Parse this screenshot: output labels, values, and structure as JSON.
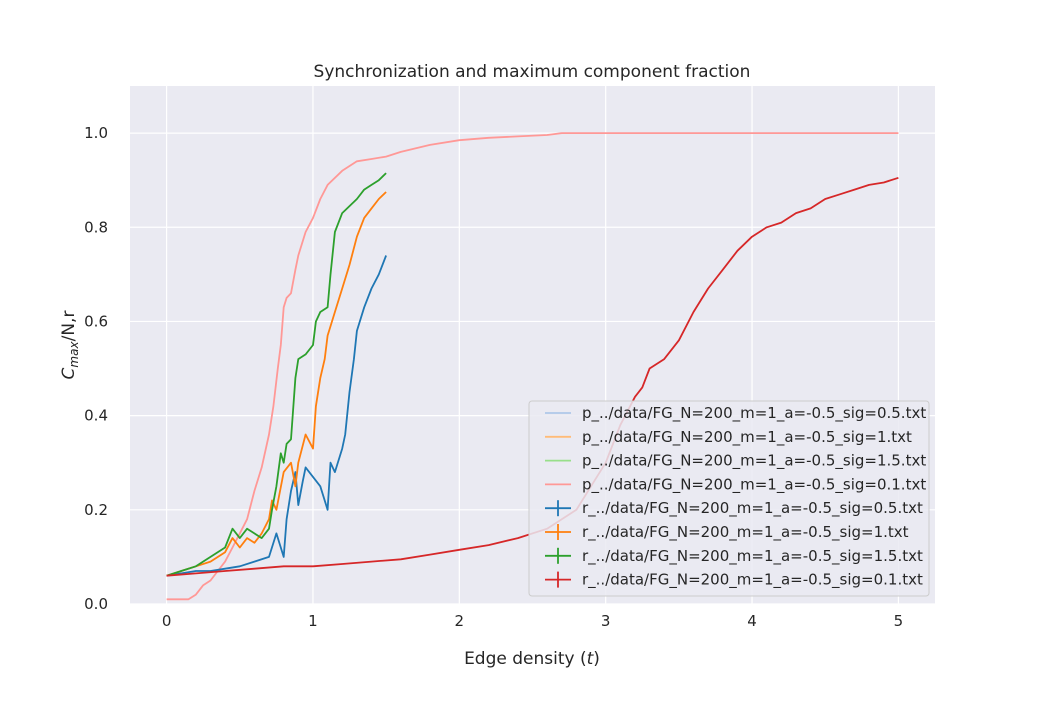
{
  "chart_data": {
    "type": "line",
    "title": "Synchronization and maximum component fraction",
    "xlabel_main": "Edge density (",
    "xlabel_var": "t",
    "xlabel_close": ")",
    "ylabel_var": "C",
    "ylabel_sub": "max",
    "ylabel_rest": "/N,r",
    "xlim": [
      -0.25,
      5.25
    ],
    "ylim": [
      0.0,
      1.1
    ],
    "xticks": [
      0,
      1,
      2,
      3,
      4,
      5
    ],
    "xtick_labels": [
      "0",
      "1",
      "2",
      "3",
      "4",
      "5"
    ],
    "yticks": [
      0.0,
      0.2,
      0.4,
      0.6,
      0.8,
      1.0
    ],
    "ytick_labels": [
      "0.0",
      "0.2",
      "0.4",
      "0.6",
      "0.8",
      "1.0"
    ],
    "grid": true,
    "legend_position": "lower-right",
    "series": [
      {
        "name": "p_../data/FG_N=200_m=1_a=-0.5_sig=0.5.txt",
        "color": "#aec7e8",
        "marker": false,
        "points": []
      },
      {
        "name": "p_../data/FG_N=200_m=1_a=-0.5_sig=1.txt",
        "color": "#ffbb78",
        "marker": false,
        "points": []
      },
      {
        "name": "p_../data/FG_N=200_m=1_a=-0.5_sig=1.5.txt",
        "color": "#98df8a",
        "marker": false,
        "points": []
      },
      {
        "name": "p_../data/FG_N=200_m=1_a=-0.5_sig=0.1.txt",
        "color": "#ff9896",
        "marker": false,
        "points": [
          [
            0.0,
            0.01
          ],
          [
            0.1,
            0.01
          ],
          [
            0.15,
            0.01
          ],
          [
            0.2,
            0.02
          ],
          [
            0.25,
            0.04
          ],
          [
            0.3,
            0.05
          ],
          [
            0.35,
            0.07
          ],
          [
            0.4,
            0.09
          ],
          [
            0.45,
            0.12
          ],
          [
            0.5,
            0.15
          ],
          [
            0.55,
            0.18
          ],
          [
            0.6,
            0.24
          ],
          [
            0.65,
            0.29
          ],
          [
            0.7,
            0.36
          ],
          [
            0.73,
            0.42
          ],
          [
            0.76,
            0.5
          ],
          [
            0.78,
            0.55
          ],
          [
            0.8,
            0.63
          ],
          [
            0.82,
            0.65
          ],
          [
            0.85,
            0.66
          ],
          [
            0.88,
            0.71
          ],
          [
            0.9,
            0.74
          ],
          [
            0.95,
            0.79
          ],
          [
            1.0,
            0.82
          ],
          [
            1.05,
            0.86
          ],
          [
            1.1,
            0.89
          ],
          [
            1.2,
            0.92
          ],
          [
            1.3,
            0.94
          ],
          [
            1.4,
            0.945
          ],
          [
            1.5,
            0.95
          ],
          [
            1.6,
            0.96
          ],
          [
            1.8,
            0.975
          ],
          [
            2.0,
            0.985
          ],
          [
            2.2,
            0.99
          ],
          [
            2.4,
            0.993
          ],
          [
            2.6,
            0.996
          ],
          [
            2.7,
            1.0
          ],
          [
            3.0,
            1.0
          ],
          [
            4.0,
            1.0
          ],
          [
            5.0,
            1.0
          ]
        ]
      },
      {
        "name": "r_../data/FG_N=200_m=1_a=-0.5_sig=0.5.txt",
        "color": "#1f77b4",
        "marker": true,
        "points": [
          [
            0.0,
            0.06
          ],
          [
            0.1,
            0.065
          ],
          [
            0.2,
            0.07
          ],
          [
            0.3,
            0.07
          ],
          [
            0.4,
            0.075
          ],
          [
            0.5,
            0.08
          ],
          [
            0.6,
            0.09
          ],
          [
            0.7,
            0.1
          ],
          [
            0.75,
            0.15
          ],
          [
            0.8,
            0.1
          ],
          [
            0.82,
            0.18
          ],
          [
            0.85,
            0.24
          ],
          [
            0.88,
            0.28
          ],
          [
            0.9,
            0.21
          ],
          [
            0.93,
            0.26
          ],
          [
            0.95,
            0.29
          ],
          [
            1.0,
            0.27
          ],
          [
            1.05,
            0.25
          ],
          [
            1.1,
            0.2
          ],
          [
            1.12,
            0.3
          ],
          [
            1.15,
            0.28
          ],
          [
            1.2,
            0.33
          ],
          [
            1.22,
            0.36
          ],
          [
            1.25,
            0.45
          ],
          [
            1.28,
            0.52
          ],
          [
            1.3,
            0.58
          ],
          [
            1.35,
            0.63
          ],
          [
            1.4,
            0.67
          ],
          [
            1.45,
            0.7
          ],
          [
            1.5,
            0.74
          ]
        ]
      },
      {
        "name": "r_../data/FG_N=200_m=1_a=-0.5_sig=1.txt",
        "color": "#ff7f0e",
        "marker": true,
        "points": [
          [
            0.0,
            0.06
          ],
          [
            0.1,
            0.07
          ],
          [
            0.2,
            0.08
          ],
          [
            0.3,
            0.09
          ],
          [
            0.4,
            0.11
          ],
          [
            0.45,
            0.14
          ],
          [
            0.5,
            0.12
          ],
          [
            0.55,
            0.14
          ],
          [
            0.6,
            0.13
          ],
          [
            0.65,
            0.15
          ],
          [
            0.7,
            0.18
          ],
          [
            0.72,
            0.22
          ],
          [
            0.75,
            0.2
          ],
          [
            0.8,
            0.28
          ],
          [
            0.85,
            0.3
          ],
          [
            0.88,
            0.25
          ],
          [
            0.9,
            0.3
          ],
          [
            0.95,
            0.36
          ],
          [
            1.0,
            0.33
          ],
          [
            1.02,
            0.42
          ],
          [
            1.05,
            0.48
          ],
          [
            1.08,
            0.52
          ],
          [
            1.1,
            0.57
          ],
          [
            1.15,
            0.62
          ],
          [
            1.2,
            0.67
          ],
          [
            1.25,
            0.72
          ],
          [
            1.3,
            0.78
          ],
          [
            1.35,
            0.82
          ],
          [
            1.4,
            0.84
          ],
          [
            1.45,
            0.86
          ],
          [
            1.5,
            0.875
          ]
        ]
      },
      {
        "name": "r_../data/FG_N=200_m=1_a=-0.5_sig=1.5.txt",
        "color": "#2ca02c",
        "marker": true,
        "points": [
          [
            0.0,
            0.06
          ],
          [
            0.1,
            0.07
          ],
          [
            0.2,
            0.08
          ],
          [
            0.3,
            0.1
          ],
          [
            0.4,
            0.12
          ],
          [
            0.45,
            0.16
          ],
          [
            0.5,
            0.14
          ],
          [
            0.55,
            0.16
          ],
          [
            0.6,
            0.15
          ],
          [
            0.65,
            0.14
          ],
          [
            0.7,
            0.16
          ],
          [
            0.72,
            0.2
          ],
          [
            0.75,
            0.25
          ],
          [
            0.78,
            0.32
          ],
          [
            0.8,
            0.3
          ],
          [
            0.82,
            0.34
          ],
          [
            0.85,
            0.35
          ],
          [
            0.88,
            0.48
          ],
          [
            0.9,
            0.52
          ],
          [
            0.95,
            0.53
          ],
          [
            1.0,
            0.55
          ],
          [
            1.02,
            0.6
          ],
          [
            1.05,
            0.62
          ],
          [
            1.1,
            0.63
          ],
          [
            1.12,
            0.7
          ],
          [
            1.15,
            0.79
          ],
          [
            1.2,
            0.83
          ],
          [
            1.3,
            0.86
          ],
          [
            1.35,
            0.88
          ],
          [
            1.4,
            0.89
          ],
          [
            1.45,
            0.9
          ],
          [
            1.5,
            0.915
          ]
        ]
      },
      {
        "name": "r_../data/FG_N=200_m=1_a=-0.5_sig=0.1.txt",
        "color": "#d62728",
        "marker": true,
        "points": [
          [
            0.0,
            0.06
          ],
          [
            0.2,
            0.065
          ],
          [
            0.4,
            0.07
          ],
          [
            0.6,
            0.075
          ],
          [
            0.8,
            0.08
          ],
          [
            1.0,
            0.08
          ],
          [
            1.2,
            0.085
          ],
          [
            1.4,
            0.09
          ],
          [
            1.6,
            0.095
          ],
          [
            1.8,
            0.105
          ],
          [
            2.0,
            0.115
          ],
          [
            2.2,
            0.125
          ],
          [
            2.4,
            0.14
          ],
          [
            2.6,
            0.16
          ],
          [
            2.8,
            0.2
          ],
          [
            2.9,
            0.25
          ],
          [
            3.0,
            0.3
          ],
          [
            3.1,
            0.38
          ],
          [
            3.2,
            0.44
          ],
          [
            3.25,
            0.46
          ],
          [
            3.3,
            0.5
          ],
          [
            3.4,
            0.52
          ],
          [
            3.5,
            0.56
          ],
          [
            3.6,
            0.62
          ],
          [
            3.7,
            0.67
          ],
          [
            3.8,
            0.71
          ],
          [
            3.9,
            0.75
          ],
          [
            4.0,
            0.78
          ],
          [
            4.1,
            0.8
          ],
          [
            4.2,
            0.81
          ],
          [
            4.3,
            0.83
          ],
          [
            4.4,
            0.84
          ],
          [
            4.5,
            0.86
          ],
          [
            4.6,
            0.87
          ],
          [
            4.7,
            0.88
          ],
          [
            4.8,
            0.89
          ],
          [
            4.9,
            0.895
          ],
          [
            5.0,
            0.905
          ]
        ]
      }
    ]
  }
}
